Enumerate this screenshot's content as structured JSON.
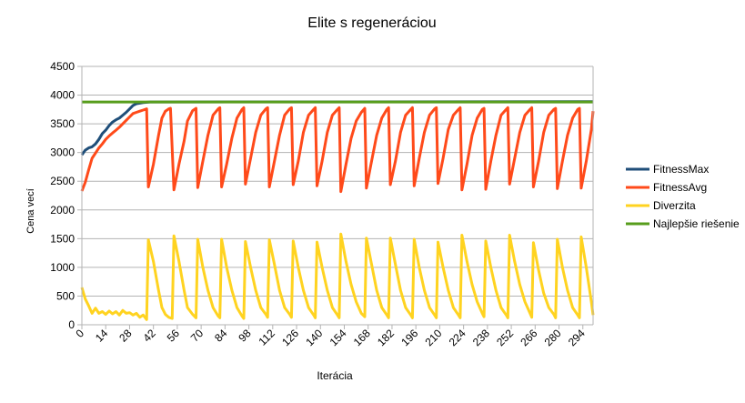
{
  "chart_data": {
    "type": "line",
    "title": "Elite s regeneráciou",
    "xlabel": "Iterácia",
    "ylabel": "Cena vecí",
    "ylim": [
      0,
      4500
    ],
    "yticks": [
      0,
      500,
      1000,
      1500,
      2000,
      2500,
      3000,
      3500,
      4000,
      4500
    ],
    "xlim": [
      0,
      300
    ],
    "xticks": [
      0,
      14,
      28,
      42,
      56,
      70,
      84,
      98,
      112,
      126,
      140,
      154,
      168,
      182,
      196,
      210,
      224,
      238,
      252,
      266,
      280,
      294
    ],
    "grid": "horizontal",
    "legend": "right",
    "series": [
      {
        "name": "FitnessMax",
        "color": "#1f4e79",
        "points": [
          [
            0,
            2960
          ],
          [
            2,
            3040
          ],
          [
            4,
            3080
          ],
          [
            6,
            3100
          ],
          [
            8,
            3150
          ],
          [
            10,
            3230
          ],
          [
            12,
            3330
          ],
          [
            14,
            3390
          ],
          [
            16,
            3470
          ],
          [
            18,
            3530
          ],
          [
            20,
            3570
          ],
          [
            22,
            3600
          ],
          [
            24,
            3650
          ],
          [
            26,
            3700
          ],
          [
            28,
            3760
          ],
          [
            30,
            3820
          ],
          [
            32,
            3850
          ],
          [
            34,
            3860
          ],
          [
            36,
            3870
          ],
          [
            40,
            3880
          ],
          [
            300,
            3885
          ]
        ]
      },
      {
        "name": "FitnessAvg",
        "color": "#ff4a1a",
        "points": [
          [
            0,
            2330
          ],
          [
            2,
            2480
          ],
          [
            4,
            2700
          ],
          [
            6,
            2900
          ],
          [
            8,
            2990
          ],
          [
            10,
            3080
          ],
          [
            12,
            3150
          ],
          [
            14,
            3230
          ],
          [
            16,
            3290
          ],
          [
            18,
            3340
          ],
          [
            20,
            3390
          ],
          [
            22,
            3440
          ],
          [
            24,
            3500
          ],
          [
            26,
            3560
          ],
          [
            28,
            3620
          ],
          [
            30,
            3680
          ],
          [
            32,
            3700
          ],
          [
            34,
            3720
          ],
          [
            36,
            3740
          ],
          [
            38,
            3760
          ],
          [
            39,
            2400
          ],
          [
            42,
            2800
          ],
          [
            45,
            3300
          ],
          [
            47,
            3600
          ],
          [
            49,
            3720
          ],
          [
            51,
            3760
          ],
          [
            52,
            3770
          ],
          [
            54,
            2350
          ],
          [
            57,
            2800
          ],
          [
            60,
            3200
          ],
          [
            62,
            3550
          ],
          [
            65,
            3730
          ],
          [
            67,
            3770
          ],
          [
            68,
            2390
          ],
          [
            71,
            2850
          ],
          [
            74,
            3300
          ],
          [
            77,
            3650
          ],
          [
            80,
            3760
          ],
          [
            81,
            3780
          ],
          [
            82,
            2400
          ],
          [
            85,
            2800
          ],
          [
            88,
            3250
          ],
          [
            91,
            3600
          ],
          [
            94,
            3750
          ],
          [
            95,
            3780
          ],
          [
            96,
            2450
          ],
          [
            99,
            2900
          ],
          [
            102,
            3350
          ],
          [
            105,
            3650
          ],
          [
            108,
            3760
          ],
          [
            109,
            3780
          ],
          [
            110,
            2400
          ],
          [
            113,
            2850
          ],
          [
            116,
            3300
          ],
          [
            119,
            3650
          ],
          [
            122,
            3760
          ],
          [
            123,
            3780
          ],
          [
            124,
            2440
          ],
          [
            127,
            2850
          ],
          [
            130,
            3350
          ],
          [
            133,
            3650
          ],
          [
            136,
            3750
          ],
          [
            137,
            3780
          ],
          [
            138,
            2420
          ],
          [
            141,
            2850
          ],
          [
            144,
            3350
          ],
          [
            147,
            3650
          ],
          [
            150,
            3750
          ],
          [
            151,
            3780
          ],
          [
            152,
            2320
          ],
          [
            155,
            2800
          ],
          [
            158,
            3250
          ],
          [
            161,
            3550
          ],
          [
            164,
            3700
          ],
          [
            166,
            3770
          ],
          [
            167,
            2380
          ],
          [
            170,
            2850
          ],
          [
            173,
            3300
          ],
          [
            176,
            3600
          ],
          [
            179,
            3750
          ],
          [
            180,
            3780
          ],
          [
            181,
            2440
          ],
          [
            184,
            2850
          ],
          [
            187,
            3350
          ],
          [
            190,
            3650
          ],
          [
            193,
            3750
          ],
          [
            194,
            3780
          ],
          [
            195,
            2420
          ],
          [
            198,
            2900
          ],
          [
            201,
            3350
          ],
          [
            204,
            3650
          ],
          [
            207,
            3760
          ],
          [
            208,
            3780
          ],
          [
            209,
            2460
          ],
          [
            212,
            2900
          ],
          [
            215,
            3400
          ],
          [
            218,
            3650
          ],
          [
            221,
            3750
          ],
          [
            222,
            3780
          ],
          [
            223,
            2350
          ],
          [
            226,
            2800
          ],
          [
            229,
            3300
          ],
          [
            232,
            3600
          ],
          [
            235,
            3750
          ],
          [
            236,
            3770
          ],
          [
            237,
            2360
          ],
          [
            240,
            2850
          ],
          [
            243,
            3300
          ],
          [
            246,
            3650
          ],
          [
            249,
            3750
          ],
          [
            250,
            3780
          ],
          [
            251,
            2450
          ],
          [
            254,
            2900
          ],
          [
            257,
            3350
          ],
          [
            260,
            3650
          ],
          [
            263,
            3750
          ],
          [
            264,
            3780
          ],
          [
            265,
            2400
          ],
          [
            268,
            2850
          ],
          [
            271,
            3350
          ],
          [
            274,
            3650
          ],
          [
            277,
            3750
          ],
          [
            278,
            3770
          ],
          [
            279,
            2370
          ],
          [
            282,
            2850
          ],
          [
            285,
            3300
          ],
          [
            288,
            3600
          ],
          [
            291,
            3750
          ],
          [
            292,
            3770
          ],
          [
            293,
            2380
          ],
          [
            296,
            2850
          ],
          [
            299,
            3400
          ],
          [
            300,
            3720
          ]
        ]
      },
      {
        "name": "Diverzita",
        "color": "#ffd320",
        "points": [
          [
            0,
            650
          ],
          [
            2,
            450
          ],
          [
            4,
            330
          ],
          [
            6,
            200
          ],
          [
            8,
            290
          ],
          [
            10,
            200
          ],
          [
            12,
            230
          ],
          [
            14,
            180
          ],
          [
            16,
            240
          ],
          [
            18,
            190
          ],
          [
            20,
            230
          ],
          [
            22,
            170
          ],
          [
            24,
            250
          ],
          [
            26,
            200
          ],
          [
            28,
            210
          ],
          [
            30,
            170
          ],
          [
            32,
            200
          ],
          [
            34,
            130
          ],
          [
            36,
            170
          ],
          [
            38,
            90
          ],
          [
            39,
            1480
          ],
          [
            42,
            1100
          ],
          [
            45,
            600
          ],
          [
            47,
            300
          ],
          [
            49,
            180
          ],
          [
            51,
            130
          ],
          [
            53,
            110
          ],
          [
            54,
            1550
          ],
          [
            57,
            1100
          ],
          [
            60,
            600
          ],
          [
            62,
            300
          ],
          [
            65,
            180
          ],
          [
            67,
            120
          ],
          [
            68,
            1490
          ],
          [
            71,
            1000
          ],
          [
            74,
            600
          ],
          [
            77,
            300
          ],
          [
            80,
            150
          ],
          [
            81,
            120
          ],
          [
            82,
            1490
          ],
          [
            85,
            1000
          ],
          [
            88,
            600
          ],
          [
            91,
            300
          ],
          [
            94,
            150
          ],
          [
            95,
            110
          ],
          [
            96,
            1450
          ],
          [
            99,
            1000
          ],
          [
            102,
            600
          ],
          [
            105,
            300
          ],
          [
            108,
            180
          ],
          [
            109,
            130
          ],
          [
            110,
            1480
          ],
          [
            113,
            1050
          ],
          [
            116,
            600
          ],
          [
            119,
            300
          ],
          [
            122,
            180
          ],
          [
            123,
            130
          ],
          [
            124,
            1460
          ],
          [
            127,
            1000
          ],
          [
            130,
            600
          ],
          [
            133,
            300
          ],
          [
            136,
            170
          ],
          [
            137,
            120
          ],
          [
            138,
            1440
          ],
          [
            141,
            1000
          ],
          [
            144,
            600
          ],
          [
            147,
            300
          ],
          [
            150,
            170
          ],
          [
            151,
            120
          ],
          [
            152,
            1580
          ],
          [
            155,
            1100
          ],
          [
            158,
            700
          ],
          [
            161,
            400
          ],
          [
            164,
            200
          ],
          [
            166,
            140
          ],
          [
            167,
            1510
          ],
          [
            170,
            1050
          ],
          [
            173,
            600
          ],
          [
            176,
            300
          ],
          [
            179,
            170
          ],
          [
            180,
            120
          ],
          [
            181,
            1510
          ],
          [
            184,
            1050
          ],
          [
            187,
            600
          ],
          [
            190,
            300
          ],
          [
            193,
            170
          ],
          [
            194,
            120
          ],
          [
            195,
            1490
          ],
          [
            198,
            1000
          ],
          [
            201,
            600
          ],
          [
            204,
            300
          ],
          [
            207,
            170
          ],
          [
            208,
            120
          ],
          [
            209,
            1440
          ],
          [
            212,
            1000
          ],
          [
            215,
            600
          ],
          [
            218,
            300
          ],
          [
            221,
            170
          ],
          [
            222,
            120
          ],
          [
            223,
            1560
          ],
          [
            226,
            1100
          ],
          [
            229,
            700
          ],
          [
            232,
            400
          ],
          [
            235,
            200
          ],
          [
            236,
            140
          ],
          [
            237,
            1460
          ],
          [
            240,
            1000
          ],
          [
            243,
            600
          ],
          [
            246,
            300
          ],
          [
            249,
            170
          ],
          [
            250,
            120
          ],
          [
            251,
            1560
          ],
          [
            254,
            1100
          ],
          [
            257,
            700
          ],
          [
            260,
            400
          ],
          [
            263,
            200
          ],
          [
            264,
            130
          ],
          [
            265,
            1430
          ],
          [
            268,
            950
          ],
          [
            271,
            550
          ],
          [
            274,
            300
          ],
          [
            277,
            180
          ],
          [
            278,
            120
          ],
          [
            279,
            1490
          ],
          [
            282,
            1000
          ],
          [
            285,
            600
          ],
          [
            288,
            300
          ],
          [
            291,
            170
          ],
          [
            292,
            120
          ],
          [
            293,
            1530
          ],
          [
            296,
            1000
          ],
          [
            299,
            400
          ],
          [
            300,
            170
          ]
        ]
      },
      {
        "name": "Najlepšie riešenie",
        "color": "#579d1c",
        "points": [
          [
            0,
            3880
          ],
          [
            300,
            3880
          ]
        ]
      }
    ]
  }
}
